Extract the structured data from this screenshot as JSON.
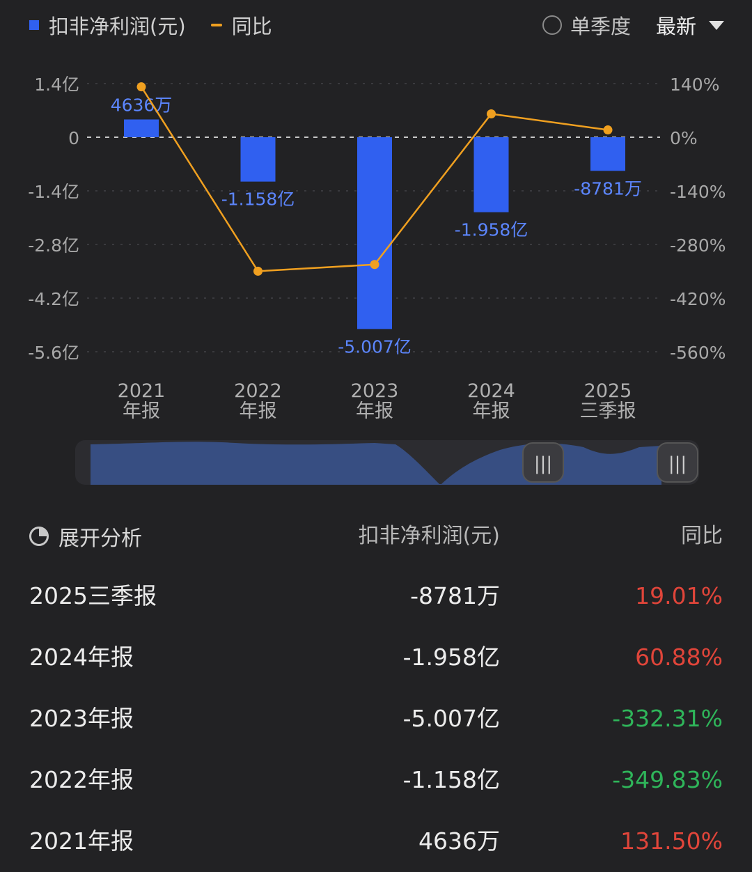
{
  "legend": {
    "bar_label": "扣非净利润(元)",
    "line_label": "同比"
  },
  "controls": {
    "quarter_label": "单季度",
    "latest_label": "最新"
  },
  "colors": {
    "bar": "#3060f0",
    "line": "#f0a020",
    "up": "#e0453a",
    "down": "#2fb55a"
  },
  "chart_data": {
    "type": "bar",
    "categories": [
      "2021\n年报",
      "2022\n年报",
      "2023\n年报",
      "2024\n年报",
      "2025\n三季报"
    ],
    "series": [
      {
        "name": "扣非净利润(元)",
        "kind": "bar",
        "values": [
          0.4636,
          -1.158,
          -5.007,
          -1.958,
          -0.8781
        ],
        "labels": [
          "4636万",
          "-1.158亿",
          "-5.007亿",
          "-1.958亿",
          "-8781万"
        ]
      },
      {
        "name": "同比",
        "kind": "line",
        "values": [
          131.5,
          -349.83,
          -332.31,
          60.88,
          19.01
        ]
      }
    ],
    "y_left": {
      "unit": "亿",
      "ylim": [
        -5.6,
        1.4
      ],
      "ticks": [
        "1.4亿",
        "0",
        "-1.4亿",
        "-2.8亿",
        "-4.2亿",
        "-5.6亿"
      ],
      "tick_values": [
        1.4,
        0,
        -1.4,
        -2.8,
        -4.2,
        -5.6
      ]
    },
    "y_right": {
      "unit": "%",
      "ylim": [
        -560,
        140
      ],
      "ticks": [
        "140%",
        "0%",
        "-140%",
        "-280%",
        "-420%",
        "-560%"
      ],
      "tick_values": [
        140,
        0,
        -140,
        -280,
        -420,
        -560
      ]
    },
    "grid": true,
    "legend_position": "top-left"
  },
  "table": {
    "expand_label": "展开分析",
    "col_value": "扣非净利润(元)",
    "col_yoy": "同比",
    "rows": [
      {
        "period": "2025三季报",
        "value": "-8781万",
        "yoy": "19.01%",
        "trend": "up"
      },
      {
        "period": "2024年报",
        "value": "-1.958亿",
        "yoy": "60.88%",
        "trend": "up"
      },
      {
        "period": "2023年报",
        "value": "-5.007亿",
        "yoy": "-332.31%",
        "trend": "down"
      },
      {
        "period": "2022年报",
        "value": "-1.158亿",
        "yoy": "-349.83%",
        "trend": "down"
      },
      {
        "period": "2021年报",
        "value": "4636万",
        "yoy": "131.50%",
        "trend": "up"
      }
    ]
  }
}
